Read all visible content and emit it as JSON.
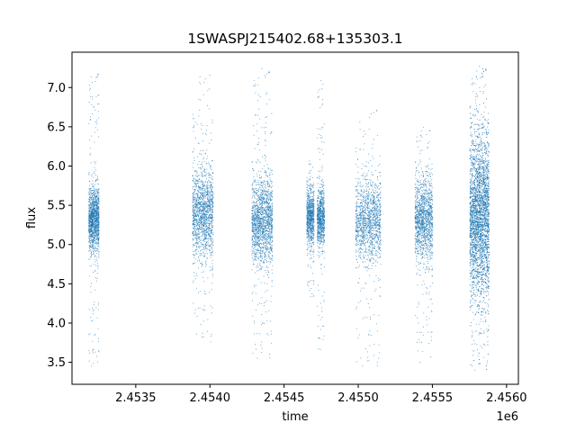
{
  "chart_data": {
    "type": "scatter",
    "title": "1SWASPJ215402.68+135303.1",
    "xlabel": "time",
    "ylabel": "flux",
    "x_offset_label": "1e6",
    "xlim": [
      2.45307,
      2.45608
    ],
    "ylim": [
      3.22,
      7.45
    ],
    "x_ticks": [
      2.4535,
      2.454,
      2.4545,
      2.455,
      2.4555,
      2.456
    ],
    "x_tick_labels": [
      "2.4535",
      "2.4540",
      "2.4545",
      "2.4550",
      "2.4555",
      "2.4560"
    ],
    "y_ticks": [
      3.5,
      4.0,
      4.5,
      5.0,
      5.5,
      6.0,
      6.5,
      7.0
    ],
    "y_tick_labels": [
      "3.5",
      "4.0",
      "4.5",
      "5.0",
      "5.5",
      "6.0",
      "6.5",
      "7.0"
    ],
    "grid": false,
    "marker_color": "#1f77b4",
    "series": [
      {
        "clusters": [
          {
            "x_range": [
              2.45318,
              2.45325
            ],
            "median": 5.33,
            "spread": 0.2,
            "min": 3.45,
            "max": 7.2,
            "density": 1.0
          },
          {
            "x_range": [
              2.45388,
              2.45402
            ],
            "median": 5.4,
            "spread": 0.28,
            "min": 3.75,
            "max": 7.2,
            "density": 1.1
          },
          {
            "x_range": [
              2.45428,
              2.45442
            ],
            "median": 5.3,
            "spread": 0.27,
            "min": 3.55,
            "max": 7.25,
            "density": 1.2
          },
          {
            "x_range": [
              2.45465,
              2.4547
            ],
            "median": 5.35,
            "spread": 0.18,
            "min": 4.3,
            "max": 6.1,
            "density": 0.6
          },
          {
            "x_range": [
              2.45472,
              2.45477
            ],
            "median": 5.35,
            "spread": 0.18,
            "min": 3.5,
            "max": 7.1,
            "density": 0.6
          },
          {
            "x_range": [
              2.45498,
              2.45515
            ],
            "median": 5.3,
            "spread": 0.26,
            "min": 3.45,
            "max": 6.75,
            "density": 1.0
          },
          {
            "x_range": [
              2.45538,
              2.4555
            ],
            "median": 5.32,
            "spread": 0.26,
            "min": 3.5,
            "max": 6.5,
            "density": 1.0
          },
          {
            "x_range": [
              2.45575,
              2.45588
            ],
            "median": 5.35,
            "spread": 0.5,
            "min": 3.4,
            "max": 7.28,
            "density": 2.6
          }
        ]
      }
    ]
  }
}
